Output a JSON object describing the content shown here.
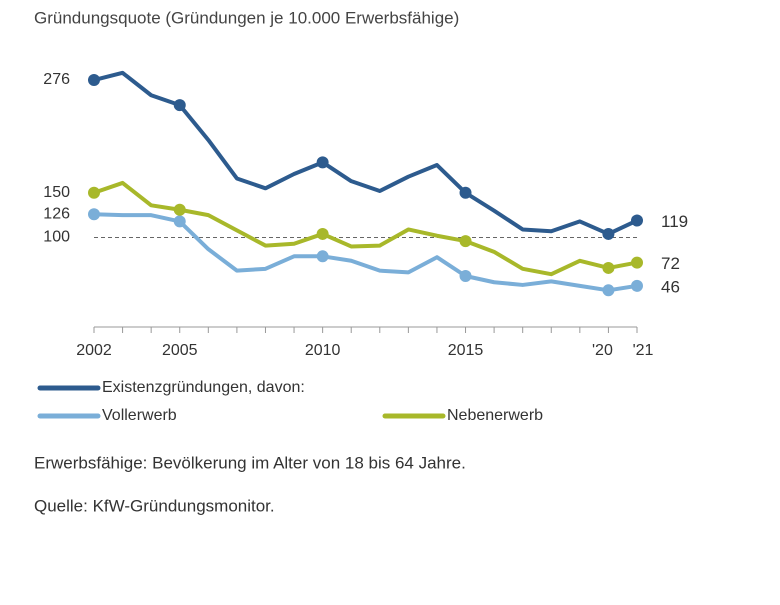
{
  "chart_data": {
    "type": "line",
    "title": "Gründungsquote (Gründungen je 10.000 Erwerbsfähige)",
    "x": [
      2002,
      2003,
      2004,
      2005,
      2006,
      2007,
      2008,
      2009,
      2010,
      2011,
      2012,
      2013,
      2014,
      2015,
      2016,
      2017,
      2018,
      2019,
      2020,
      2021
    ],
    "series": [
      {
        "name": "Existenzgründungen, davon:",
        "color": "#2d5b8e",
        "values": [
          276,
          284,
          259,
          248,
          209,
          166,
          155,
          171,
          184,
          163,
          152,
          168,
          181,
          150,
          130,
          109,
          107,
          118,
          104,
          119
        ]
      },
      {
        "name": "Vollerwerb",
        "color": "#7aaed8",
        "values": [
          126,
          125,
          125,
          118,
          87,
          63,
          65,
          79,
          79,
          74,
          63,
          61,
          78,
          57,
          50,
          47,
          51,
          46,
          41,
          46
        ]
      },
      {
        "name": "Nebenerwerb",
        "color": "#a8b82a",
        "values": [
          150,
          161,
          136,
          131,
          125,
          108,
          91,
          93,
          104,
          90,
          91,
          109,
          102,
          96,
          84,
          65,
          59,
          74,
          66,
          72
        ]
      }
    ],
    "xlim": [
      2002,
      2021
    ],
    "xticks": [
      2002,
      2005,
      2010,
      2015,
      {
        "value": 2020,
        "label": "'20"
      },
      {
        "value": 2021,
        "label": "'21"
      }
    ],
    "ylim": [
      0,
      290
    ],
    "yticks": [
      100,
      126,
      150,
      276
    ],
    "reference_line": 100,
    "notes": [
      "Erwerbsfähige: Bevölkerung im Alter von 18 bis 64 Jahre.",
      "Quelle: KfW-Gründungsmonitor."
    ]
  }
}
